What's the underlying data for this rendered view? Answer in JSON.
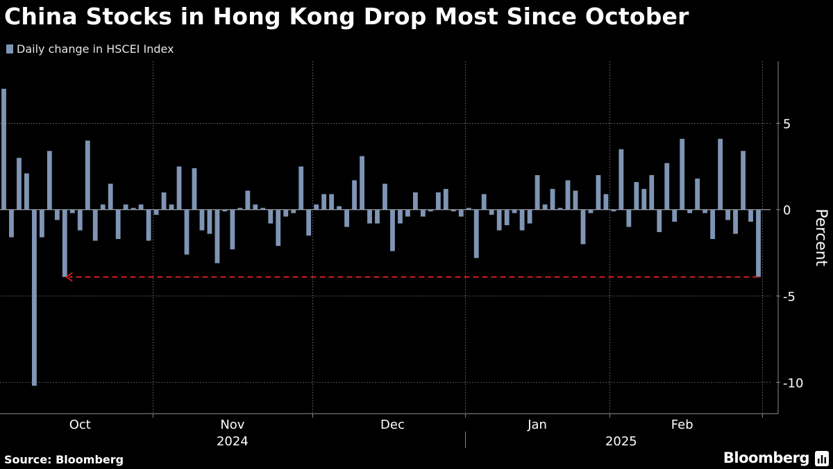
{
  "colors": {
    "background": "#000000",
    "bar": "#7f95b5",
    "grid": "#555555",
    "annotation": "#d42020",
    "text": "#ffffff"
  },
  "footer": {
    "source": "Source: Bloomberg",
    "brand": "Bloomberg",
    "brand_icon": "bloomberg-terminal-icon"
  },
  "chart_data": {
    "type": "bar",
    "title": "China Stocks in Hong Kong Drop Most Since October",
    "legend": "Daily change in HSCEI Index",
    "ylabel": "Percent",
    "ylim": [
      -11.8,
      8.6
    ],
    "yticks": [
      5,
      0,
      -5,
      -10
    ],
    "ytick_labels": [
      "5",
      "0",
      "-5",
      "-10"
    ],
    "grid": true,
    "month_ticks": [
      {
        "label": "Oct",
        "index": 10
      },
      {
        "label": "Nov",
        "index": 30
      },
      {
        "label": "Dec",
        "index": 51
      },
      {
        "label": "Jan",
        "index": 70
      },
      {
        "label": "Feb",
        "index": 89
      }
    ],
    "month_dividers": [
      20,
      41,
      61,
      80,
      100
    ],
    "year_labels": [
      {
        "label": "2024",
        "index": 30
      },
      {
        "label": "2025",
        "index": 81
      }
    ],
    "year_divider": 61,
    "series": [
      {
        "name": "Daily change in HSCEI Index",
        "values": [
          7.0,
          -1.6,
          3.0,
          2.1,
          -10.2,
          -1.6,
          3.4,
          -0.6,
          -3.9,
          -0.2,
          -1.2,
          4.0,
          -1.8,
          0.3,
          1.5,
          -1.7,
          0.3,
          0.1,
          0.3,
          -1.8,
          -0.3,
          1.0,
          0.3,
          2.5,
          -2.6,
          2.4,
          -1.2,
          -1.4,
          -3.1,
          -0.1,
          -2.3,
          0.1,
          1.1,
          0.3,
          0.1,
          -0.8,
          -2.1,
          -0.4,
          -0.2,
          2.5,
          -1.5,
          0.3,
          0.9,
          0.9,
          0.2,
          -1.0,
          1.7,
          3.1,
          -0.8,
          -0.8,
          1.5,
          -2.4,
          -0.8,
          -0.4,
          1.0,
          -0.4,
          -0.1,
          1.0,
          1.2,
          -0.1,
          -0.4,
          0.1,
          -2.8,
          0.9,
          -0.3,
          -1.2,
          -0.9,
          -0.2,
          -1.2,
          -0.8,
          2.0,
          0.3,
          1.2,
          0.1,
          1.7,
          1.1,
          -2.0,
          -0.2,
          2.0,
          0.9,
          -0.1,
          3.5,
          -1.0,
          1.6,
          1.2,
          2.0,
          -1.3,
          2.7,
          -0.7,
          4.1,
          -0.2,
          1.8,
          -0.2,
          -1.7,
          4.1,
          -0.6,
          -1.4,
          3.4,
          -0.7,
          -3.9
        ]
      }
    ],
    "annotation": {
      "type": "dashed-arrow",
      "value": -3.9,
      "from_index": 99,
      "to_index": 8
    }
  }
}
